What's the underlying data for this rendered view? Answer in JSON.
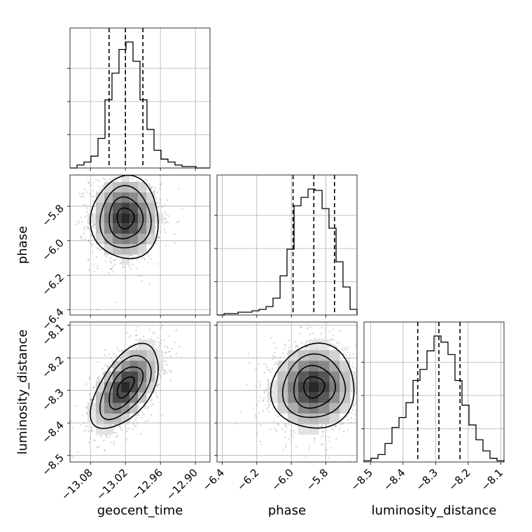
{
  "chart_data": {
    "type": "corner",
    "parameters": [
      {
        "name": "geocent_time",
        "xlabel": "geocent_time",
        "ticks": [
          -13.08,
          -13.02,
          -12.96,
          -12.9
        ],
        "tick_labels": [
          "−13.08",
          "−13.02",
          "−12.96",
          "−12.90"
        ],
        "range": [
          -13.115,
          -12.875
        ],
        "quantiles": [
          -13.048,
          -13.02,
          -12.99
        ],
        "histogram": {
          "edges": [
            -13.115,
            -13.103,
            -13.091,
            -13.079,
            -13.067,
            -13.055,
            -13.043,
            -13.031,
            -13.019,
            -13.007,
            -12.995,
            -12.983,
            -12.971,
            -12.959,
            -12.947,
            -12.935,
            -12.923,
            -12.911,
            -12.899,
            -12.887,
            -12.875
          ],
          "counts": [
            0,
            2,
            4,
            8,
            20,
            46,
            64,
            80,
            85,
            72,
            46,
            26,
            12,
            6,
            4,
            2,
            1,
            1,
            0,
            0
          ]
        }
      },
      {
        "name": "phase",
        "xlabel": "phase",
        "ylabel": "phase",
        "ticks": [
          -6.4,
          -6.2,
          -6.0,
          -5.8
        ],
        "tick_labels": [
          "−6.4",
          "−6.2",
          "−6.0",
          "−5.8"
        ],
        "range": [
          -6.43,
          -5.62
        ],
        "quantiles": [
          -5.99,
          -5.87,
          -5.75
        ],
        "histogram": {
          "edges": [
            -6.43,
            -6.389,
            -6.349,
            -6.308,
            -6.268,
            -6.227,
            -6.187,
            -6.146,
            -6.106,
            -6.065,
            -6.025,
            -5.984,
            -5.944,
            -5.903,
            -5.863,
            -5.822,
            -5.782,
            -5.741,
            -5.701,
            -5.66,
            -5.62
          ],
          "counts": [
            0,
            1,
            1,
            2,
            2,
            3,
            4,
            6,
            12,
            28,
            47,
            78,
            84,
            90,
            89,
            76,
            62,
            38,
            20,
            4
          ]
        }
      },
      {
        "name": "luminosity_distance",
        "xlabel": "luminosity_distance",
        "ylabel": "luminosity_distance",
        "ticks": [
          -8.5,
          -8.4,
          -8.3,
          -8.2,
          -8.1
        ],
        "tick_labels": [
          "−8.5",
          "−8.4",
          "−8.3",
          "−8.2",
          "−8.1"
        ],
        "range": [
          -8.52,
          -8.09
        ],
        "quantiles": [
          -8.355,
          -8.29,
          -8.225
        ],
        "histogram": {
          "edges": [
            -8.52,
            -8.4985,
            -8.477,
            -8.4555,
            -8.434,
            -8.4125,
            -8.391,
            -8.3695,
            -8.348,
            -8.3265,
            -8.305,
            -8.2835,
            -8.262,
            -8.2405,
            -8.219,
            -8.1975,
            -8.176,
            -8.1545,
            -8.133,
            -8.1115,
            -8.09
          ],
          "counts": [
            1,
            3,
            6,
            15,
            28,
            36,
            48,
            66,
            75,
            90,
            102,
            97,
            87,
            66,
            46,
            30,
            18,
            9,
            3,
            1
          ]
        }
      }
    ],
    "grid": true
  }
}
